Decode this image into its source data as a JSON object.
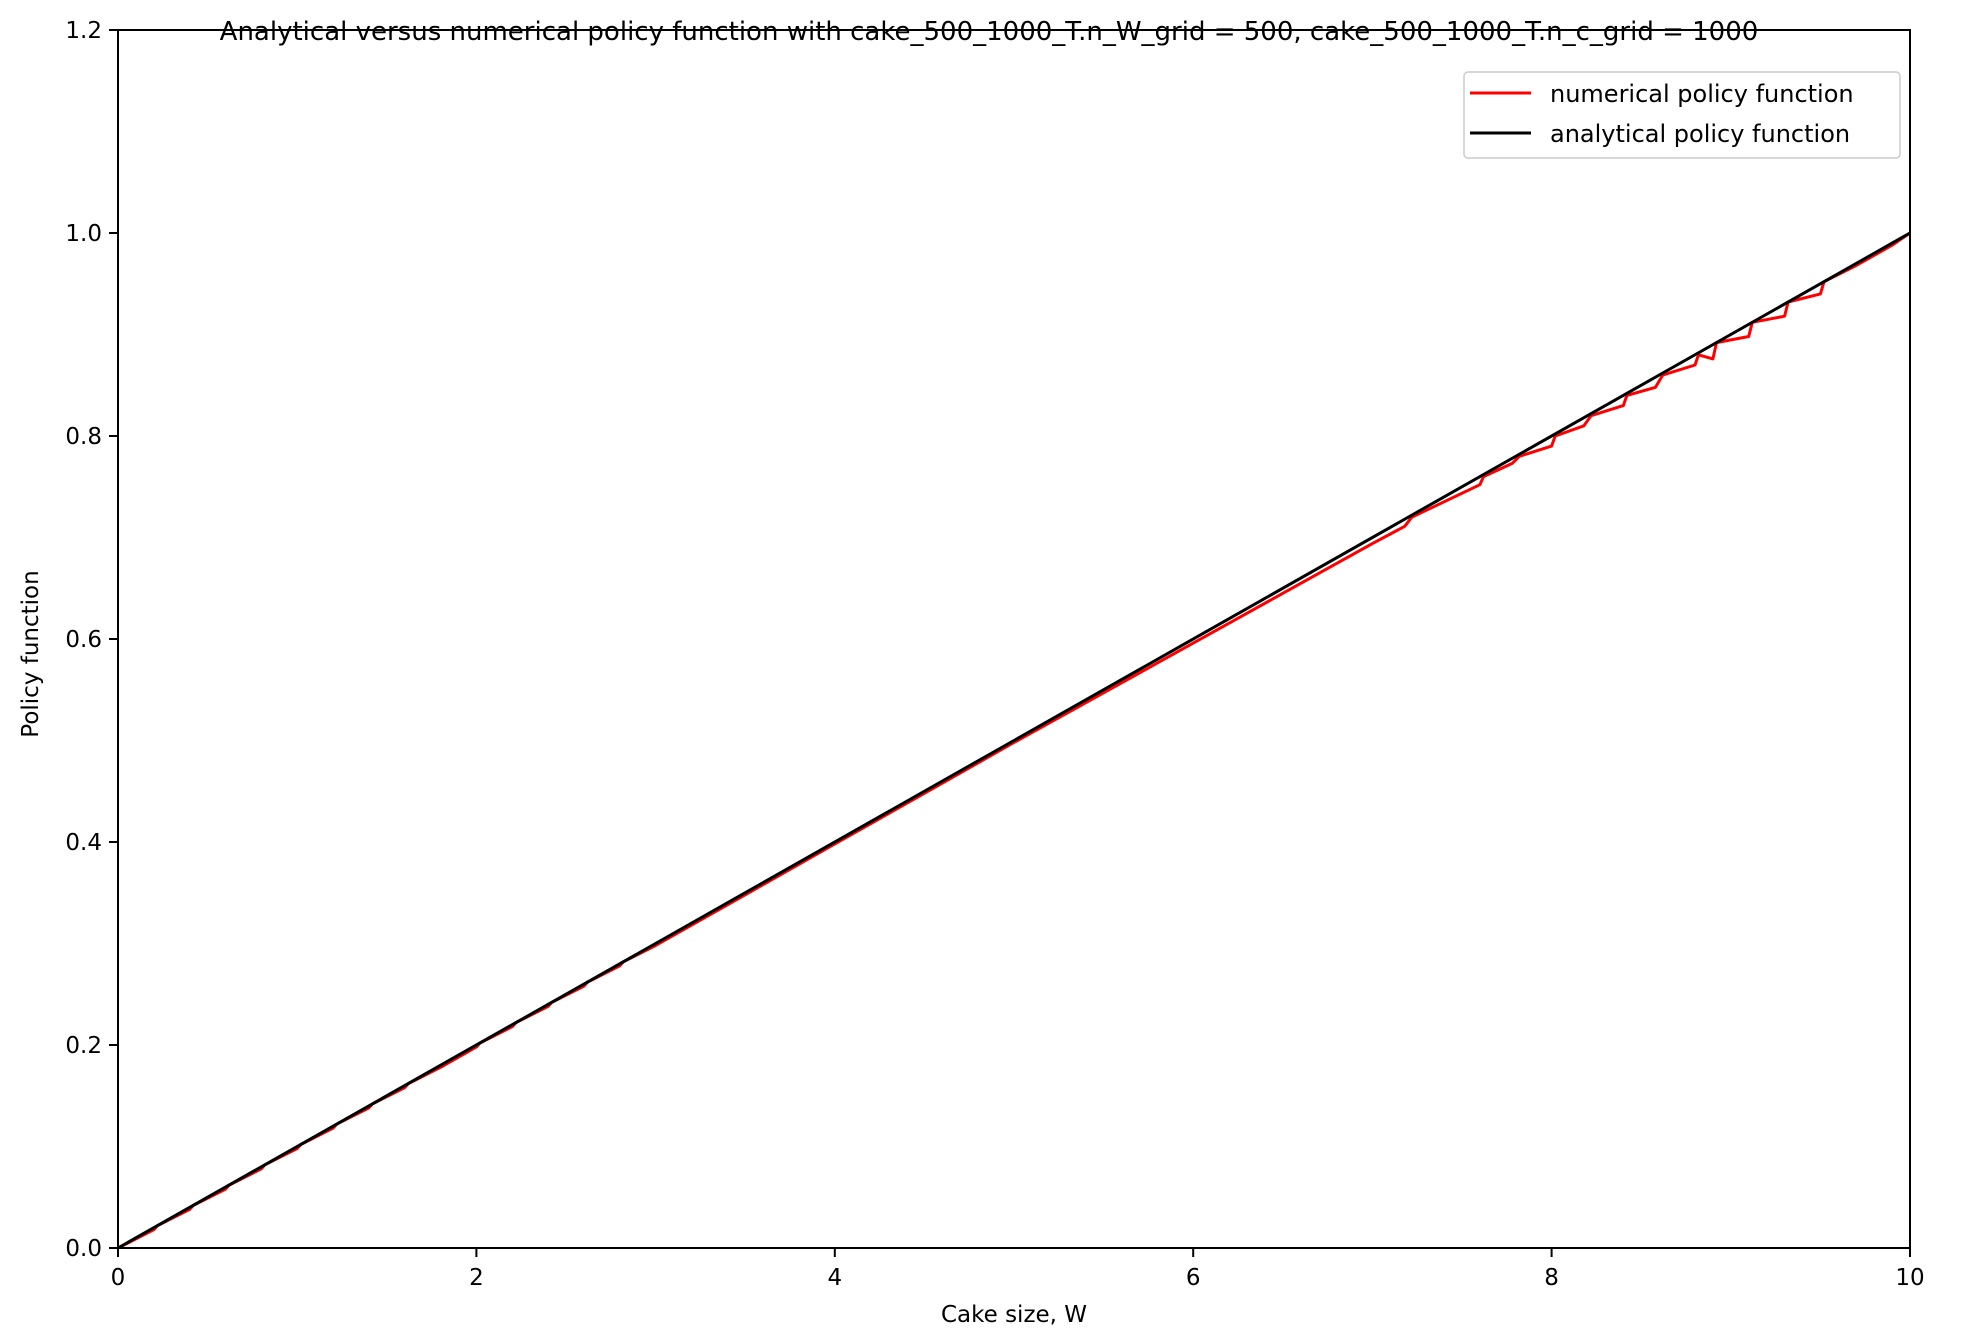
{
  "chart_data": {
    "type": "line",
    "title": "Analytical versus numerical policy function with cake_500_1000_T.n_W_grid = 500, cake_500_1000_T.n_c_grid = 1000",
    "xlabel": "Cake size, W",
    "ylabel": "Policy function",
    "xlim": [
      0,
      10
    ],
    "ylim": [
      0,
      1.2
    ],
    "xticks": [
      0,
      2,
      4,
      6,
      8,
      10
    ],
    "xtick_labels": [
      "0",
      "2",
      "4",
      "6",
      "8",
      "10"
    ],
    "yticks": [
      0,
      0.2,
      0.4,
      0.6,
      0.8,
      1.0,
      1.2
    ],
    "ytick_labels": [
      "0.0",
      "0.2",
      "0.4",
      "0.6",
      "0.8",
      "1.0",
      "1.2"
    ],
    "grid": false,
    "legend": {
      "placement": "top-right"
    },
    "series": [
      {
        "name": "numerical policy function",
        "color": "#ff0000",
        "x": [
          0,
          0.2,
          0.22,
          0.4,
          0.42,
          0.6,
          0.62,
          0.8,
          0.82,
          1.0,
          1.02,
          1.2,
          1.22,
          1.4,
          1.42,
          1.6,
          1.62,
          1.8,
          2.0,
          2.02,
          2.2,
          2.22,
          2.4,
          2.42,
          2.6,
          2.62,
          2.8,
          2.82,
          3.0,
          3.5,
          4.0,
          4.5,
          5.0,
          5.5,
          6.0,
          6.5,
          7.0,
          7.18,
          7.22,
          7.6,
          7.62,
          7.78,
          7.82,
          8.0,
          8.02,
          8.18,
          8.22,
          8.4,
          8.42,
          8.58,
          8.62,
          8.8,
          8.82,
          8.9,
          8.92,
          9.1,
          9.12,
          9.3,
          9.32,
          9.5,
          9.52,
          9.7,
          9.9,
          10.0
        ],
        "y": [
          0,
          0.018,
          0.022,
          0.038,
          0.042,
          0.058,
          0.062,
          0.078,
          0.082,
          0.098,
          0.102,
          0.118,
          0.122,
          0.138,
          0.142,
          0.158,
          0.162,
          0.178,
          0.198,
          0.202,
          0.218,
          0.222,
          0.238,
          0.242,
          0.258,
          0.262,
          0.278,
          0.282,
          0.298,
          0.348,
          0.398,
          0.448,
          0.498,
          0.547,
          0.596,
          0.645,
          0.694,
          0.711,
          0.72,
          0.752,
          0.76,
          0.773,
          0.78,
          0.79,
          0.8,
          0.81,
          0.82,
          0.83,
          0.84,
          0.848,
          0.86,
          0.87,
          0.88,
          0.876,
          0.892,
          0.898,
          0.912,
          0.918,
          0.932,
          0.94,
          0.952,
          0.968,
          0.988,
          1.0
        ]
      },
      {
        "name": "analytical policy function",
        "color": "#000000",
        "x": [
          0,
          10
        ],
        "y": [
          0,
          1.0
        ]
      }
    ]
  }
}
